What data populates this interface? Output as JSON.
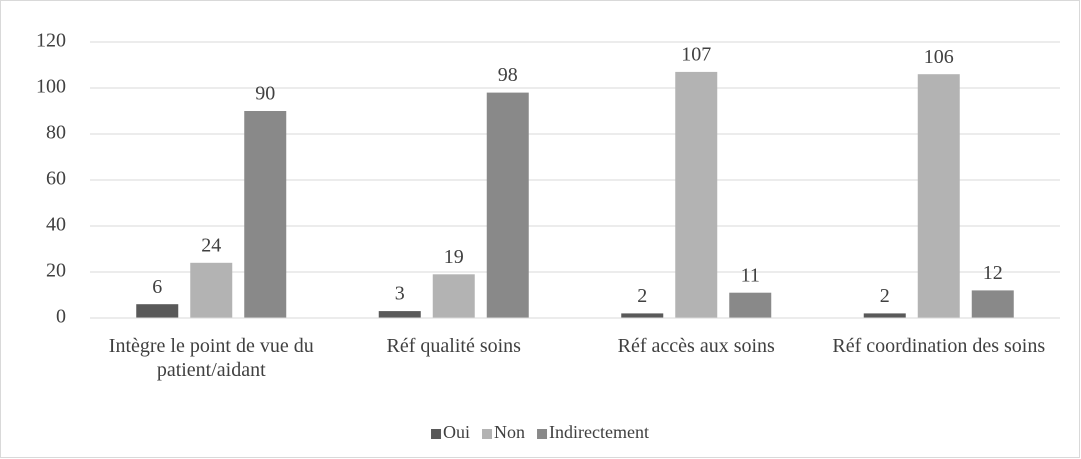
{
  "chart_data": {
    "type": "bar",
    "categories": [
      "Intègre le point de vue du patient/aidant",
      "Réf qualité soins",
      "Réf accès aux soins",
      "Réf coordination des soins"
    ],
    "series": [
      {
        "name": "Oui",
        "color": "#595959",
        "values": [
          6,
          3,
          2,
          2
        ]
      },
      {
        "name": "Non",
        "color": "#b3b3b3",
        "values": [
          24,
          19,
          107,
          106
        ]
      },
      {
        "name": "Indirectement",
        "color": "#898989",
        "values": [
          90,
          98,
          11,
          12
        ]
      }
    ],
    "ylim": [
      0,
      120
    ],
    "yticks": [
      0,
      20,
      40,
      60,
      80,
      100,
      120
    ],
    "grid": true,
    "legend": "bottom"
  }
}
